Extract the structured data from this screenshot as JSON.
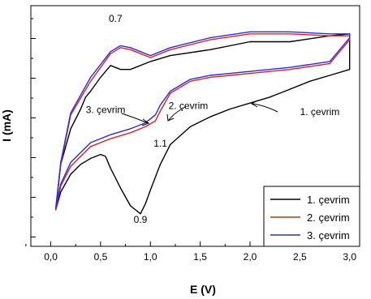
{
  "chart_data": {
    "type": "line",
    "title": "",
    "xlabel": "E (V)",
    "ylabel": "I (mA)",
    "xlim": [
      -0.2,
      3.1
    ],
    "ylim": [
      0,
      1
    ],
    "x_ticks": [
      "0,0",
      "0,5",
      "1,0",
      "1,5",
      "2,0",
      "2,5",
      "3,0"
    ],
    "y_tick_labels": "none",
    "grid": false,
    "legend_position": "bottom-right",
    "series": [
      {
        "name": "1. çevrim",
        "color": "#000000",
        "x": [
          0.05,
          0.1,
          0.2,
          0.3,
          0.4,
          0.5,
          0.55,
          0.6,
          0.7,
          0.8,
          0.9,
          0.95,
          1.0,
          1.1,
          1.2,
          1.4,
          1.6,
          1.8,
          2.0,
          2.2,
          2.3,
          2.4,
          2.6,
          2.8,
          3.0,
          3.0,
          2.8,
          2.4,
          2.0,
          1.6,
          1.2,
          1.0,
          0.8,
          0.7,
          0.6,
          0.5,
          0.4,
          0.35,
          0.3,
          0.2,
          0.1,
          0.05
        ],
        "y": [
          0.07,
          0.16,
          0.25,
          0.3,
          0.33,
          0.35,
          0.34,
          0.28,
          0.18,
          0.09,
          0.05,
          0.1,
          0.17,
          0.3,
          0.4,
          0.49,
          0.54,
          0.58,
          0.61,
          0.64,
          0.66,
          0.68,
          0.72,
          0.75,
          0.78,
          0.96,
          0.95,
          0.92,
          0.92,
          0.88,
          0.85,
          0.82,
          0.78,
          0.78,
          0.8,
          0.74,
          0.67,
          0.64,
          0.58,
          0.48,
          0.3,
          0.07
        ]
      },
      {
        "name": "2. çevrim",
        "color": "#e0211f",
        "x": [
          0.05,
          0.1,
          0.2,
          0.4,
          0.6,
          0.8,
          0.95,
          1.05,
          1.1,
          1.2,
          1.4,
          1.6,
          1.8,
          2.0,
          2.4,
          2.8,
          3.0,
          3.0,
          2.8,
          2.4,
          2.0,
          1.6,
          1.2,
          1.0,
          0.9,
          0.8,
          0.7,
          0.6,
          0.4,
          0.2,
          0.1,
          0.05
        ],
        "y": [
          0.07,
          0.19,
          0.29,
          0.39,
          0.43,
          0.46,
          0.49,
          0.52,
          0.57,
          0.66,
          0.72,
          0.74,
          0.75,
          0.76,
          0.78,
          0.81,
          0.93,
          0.95,
          0.95,
          0.96,
          0.96,
          0.93,
          0.88,
          0.84,
          0.86,
          0.88,
          0.89,
          0.86,
          0.72,
          0.55,
          0.3,
          0.07
        ]
      },
      {
        "name": "3. çevrim",
        "color": "#2b2be0",
        "x": [
          0.05,
          0.1,
          0.2,
          0.4,
          0.6,
          0.8,
          0.95,
          1.05,
          1.1,
          1.2,
          1.4,
          1.6,
          1.8,
          2.0,
          2.4,
          2.8,
          3.0,
          3.0,
          2.8,
          2.4,
          2.0,
          1.6,
          1.2,
          1.0,
          0.9,
          0.8,
          0.7,
          0.6,
          0.4,
          0.2,
          0.1,
          0.05
        ],
        "y": [
          0.08,
          0.2,
          0.31,
          0.41,
          0.45,
          0.48,
          0.51,
          0.55,
          0.6,
          0.67,
          0.73,
          0.75,
          0.76,
          0.77,
          0.79,
          0.82,
          0.94,
          0.96,
          0.96,
          0.97,
          0.97,
          0.94,
          0.89,
          0.85,
          0.87,
          0.89,
          0.9,
          0.87,
          0.74,
          0.56,
          0.31,
          0.08
        ]
      }
    ],
    "annotations": [
      {
        "text": "0.7",
        "x": 0.65,
        "y": 1.02
      },
      {
        "text": "0.9",
        "x": 0.9,
        "y": 0.005
      },
      {
        "text": "1.1",
        "x": 1.1,
        "y": 0.39
      },
      {
        "text": "3. çevrim",
        "x": 0.55,
        "y": 0.56
      },
      {
        "text": "2. çevrim",
        "x": 1.38,
        "y": 0.58
      },
      {
        "text": "1. çevrim",
        "x": 2.7,
        "y": 0.55
      }
    ]
  }
}
